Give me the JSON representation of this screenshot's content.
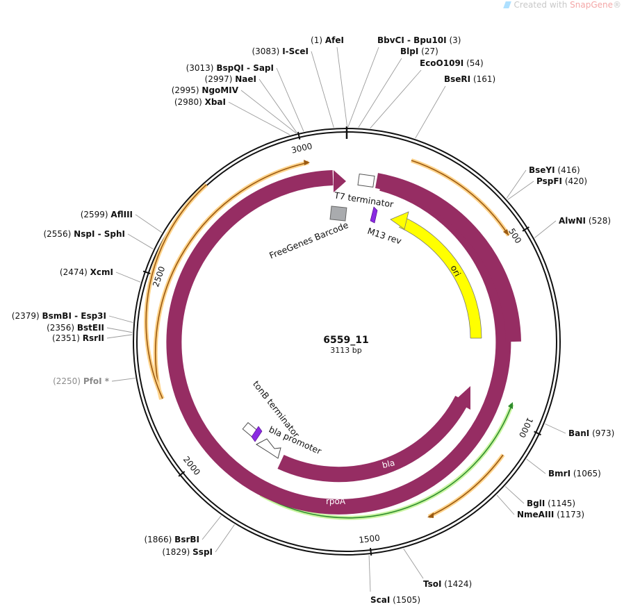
{
  "watermark": {
    "prefix": "Created with ",
    "brand": "SnapGene",
    "mark": "®"
  },
  "plasmid": {
    "name": "6559_11",
    "length_label": "3113 bp",
    "length": 3113
  },
  "colors": {
    "backbone": "#111111",
    "feature_purple": "#962D63",
    "ori": "#FFFF00",
    "green": "#2E8B2E",
    "green_glow": "#C9F5A0",
    "orange": "#9A5A12",
    "orange_glow": "#FFD38A",
    "primer": "#8A2BE2",
    "barcode": "#A9ABAE"
  },
  "ticks": [
    {
      "pos": 500,
      "label": "500"
    },
    {
      "pos": 1000,
      "label": "1000"
    },
    {
      "pos": 1500,
      "label": "1500"
    },
    {
      "pos": 2000,
      "label": "2000"
    },
    {
      "pos": 2500,
      "label": "2500"
    },
    {
      "pos": 3000,
      "label": "3000"
    }
  ],
  "enzymes": [
    {
      "name": "AfeI",
      "pos": "(1)",
      "site": 1,
      "side": "L"
    },
    {
      "name": "I-SceI",
      "pos": "(3083)",
      "site": 3083,
      "side": "L"
    },
    {
      "name": "BspQI  - SapI",
      "pos": "(3013)",
      "site": 3013,
      "side": "L"
    },
    {
      "name": "NaeI",
      "pos": "(2997)",
      "site": 2997,
      "side": "L"
    },
    {
      "name": "NgoMIV",
      "pos": "(2995)",
      "site": 2995,
      "side": "L"
    },
    {
      "name": "XbaI",
      "pos": "(2980)",
      "site": 2980,
      "side": "L"
    },
    {
      "name": "AflIII",
      "pos": "(2599)",
      "site": 2599,
      "side": "L"
    },
    {
      "name": "NspI  - SphI",
      "pos": "(2556)",
      "site": 2556,
      "side": "L"
    },
    {
      "name": "XcmI",
      "pos": "(2474)",
      "site": 2474,
      "side": "L"
    },
    {
      "name": "BsmBI  - Esp3I",
      "pos": "(2379)",
      "site": 2379,
      "side": "L"
    },
    {
      "name": "BstEII",
      "pos": "(2356)",
      "site": 2356,
      "side": "L"
    },
    {
      "name": "RsrII",
      "pos": "(2351)",
      "site": 2351,
      "side": "L"
    },
    {
      "name": "PfoI *",
      "pos": "(2250)",
      "site": 2250,
      "side": "L",
      "dim": true
    },
    {
      "name": "BsrBI",
      "pos": "(1866)",
      "site": 1866,
      "side": "L"
    },
    {
      "name": "SspI",
      "pos": "(1829)",
      "site": 1829,
      "side": "L"
    },
    {
      "name": "ScaI",
      "pos": "(1505)",
      "site": 1505,
      "side": "R"
    },
    {
      "name": "BbvCI  - Bpu10I",
      "pos": "(3)",
      "site": 3,
      "side": "R"
    },
    {
      "name": "BlpI",
      "pos": "(27)",
      "site": 27,
      "side": "R"
    },
    {
      "name": "EcoO109I",
      "pos": "(54)",
      "site": 54,
      "side": "R"
    },
    {
      "name": "BseRI",
      "pos": "(161)",
      "site": 161,
      "side": "R"
    },
    {
      "name": "BseYI",
      "pos": "(416)",
      "site": 416,
      "side": "R"
    },
    {
      "name": "PspFI",
      "pos": "(420)",
      "site": 420,
      "side": "R"
    },
    {
      "name": "AlwNI",
      "pos": "(528)",
      "site": 528,
      "side": "R"
    },
    {
      "name": "BanI",
      "pos": "(973)",
      "site": 973,
      "side": "R"
    },
    {
      "name": "BmrI",
      "pos": "(1065)",
      "site": 1065,
      "side": "R"
    },
    {
      "name": "BglI",
      "pos": "(1145)",
      "site": 1145,
      "side": "R"
    },
    {
      "name": "NmeAIII",
      "pos": "(1173)",
      "site": 1173,
      "side": "R"
    },
    {
      "name": "TsoI",
      "pos": "(1424)",
      "site": 1424,
      "side": "R"
    }
  ],
  "features": [
    {
      "name": "rpoA",
      "type": "cds",
      "direction": "cw",
      "start": 2890,
      "end": 1240
    },
    {
      "name": "bla",
      "type": "cds",
      "direction": "ccw",
      "start": 1050,
      "end": 1850
    },
    {
      "name": "ori",
      "type": "rep_origin",
      "direction": "ccw",
      "start": 230,
      "end": 820
    },
    {
      "name": "T7 terminator",
      "type": "terminator"
    },
    {
      "name": "M13 rev",
      "type": "primer_bind"
    },
    {
      "name": "FreeGenes Barcode",
      "type": "misc"
    },
    {
      "name": "tonB terminator",
      "type": "terminator"
    },
    {
      "name": "bla promoter",
      "type": "promoter"
    }
  ]
}
